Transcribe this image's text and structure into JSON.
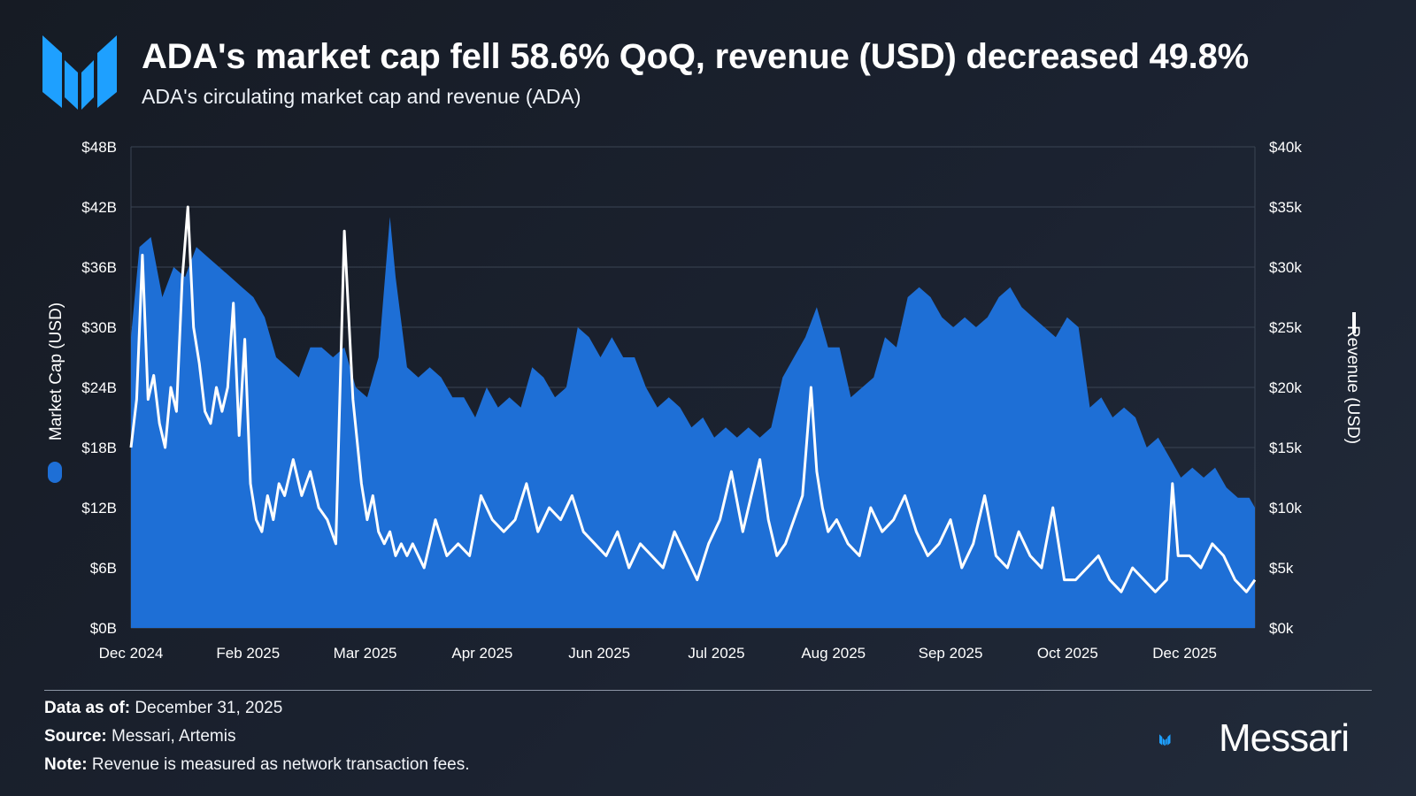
{
  "header": {
    "title": "ADA's market cap fell 58.6% QoQ, revenue (USD) decreased 49.8%",
    "subtitle": "ADA's circulating market cap and revenue (ADA)"
  },
  "footer": {
    "data_as_of_label": "Data as of:",
    "data_as_of_value": "December 31, 2025",
    "source_label": "Source:",
    "source_value": "Messari, Artemis",
    "note_label": "Note:",
    "note_value": "Revenue is measured as network transaction fees."
  },
  "brand": {
    "name": "Messari"
  },
  "colors": {
    "area": "#1e6fd6",
    "area_dark": "#1a5fbf",
    "line": "#ffffff",
    "grid": "#3a4453",
    "accent": "#1ea0ff"
  },
  "chart_data": {
    "type": "area",
    "x_tick_labels": [
      "Dec 2024",
      "Feb 2025",
      "Mar 2025",
      "Apr 2025",
      "Jun 2025",
      "Jul 2025",
      "Aug 2025",
      "Sep 2025",
      "Oct 2025",
      "Dec 2025"
    ],
    "x_range": [
      "2024-12-01",
      "2025-12-31"
    ],
    "left_axis": {
      "label": "Market Cap (USD)",
      "min": 0,
      "max": 48,
      "ticks": [
        0,
        6,
        12,
        18,
        24,
        30,
        36,
        42,
        48
      ],
      "tick_labels": [
        "$0B",
        "$6B",
        "$12B",
        "$18B",
        "$24B",
        "$30B",
        "$36B",
        "$42B",
        "$48B"
      ]
    },
    "right_axis": {
      "label": "Revenue (USD)",
      "min": 0,
      "max": 40,
      "ticks": [
        0,
        5,
        10,
        15,
        20,
        25,
        30,
        35,
        40
      ],
      "tick_labels": [
        "$0k",
        "$5k",
        "$10k",
        "$15k",
        "$20k",
        "$25k",
        "$30k",
        "$35k",
        "$40k"
      ]
    },
    "series": [
      {
        "name": "Market Cap (USD)",
        "kind": "area",
        "axis": "left",
        "unit": "billions USD",
        "x": [
          "2024-12-01",
          "2024-12-04",
          "2024-12-08",
          "2024-12-12",
          "2024-12-16",
          "2024-12-20",
          "2024-12-24",
          "2024-12-28",
          "2025-01-01",
          "2025-01-05",
          "2025-01-09",
          "2025-01-13",
          "2025-01-17",
          "2025-01-21",
          "2025-01-25",
          "2025-01-29",
          "2025-02-02",
          "2025-02-06",
          "2025-02-10",
          "2025-02-14",
          "2025-02-18",
          "2025-02-22",
          "2025-02-26",
          "2025-03-02",
          "2025-03-04",
          "2025-03-08",
          "2025-03-12",
          "2025-03-16",
          "2025-03-20",
          "2025-03-24",
          "2025-03-28",
          "2025-04-01",
          "2025-04-05",
          "2025-04-09",
          "2025-04-13",
          "2025-04-17",
          "2025-04-21",
          "2025-04-25",
          "2025-04-29",
          "2025-05-03",
          "2025-05-07",
          "2025-05-11",
          "2025-05-15",
          "2025-05-19",
          "2025-05-23",
          "2025-05-27",
          "2025-05-31",
          "2025-06-04",
          "2025-06-08",
          "2025-06-12",
          "2025-06-16",
          "2025-06-20",
          "2025-06-24",
          "2025-06-28",
          "2025-07-02",
          "2025-07-06",
          "2025-07-10",
          "2025-07-14",
          "2025-07-18",
          "2025-07-22",
          "2025-07-26",
          "2025-07-30",
          "2025-08-03",
          "2025-08-07",
          "2025-08-11",
          "2025-08-15",
          "2025-08-19",
          "2025-08-23",
          "2025-08-27",
          "2025-08-31",
          "2025-09-04",
          "2025-09-08",
          "2025-09-12",
          "2025-09-16",
          "2025-09-20",
          "2025-09-24",
          "2025-09-28",
          "2025-10-02",
          "2025-10-06",
          "2025-10-10",
          "2025-10-14",
          "2025-10-18",
          "2025-10-22",
          "2025-10-26",
          "2025-10-30",
          "2025-11-03",
          "2025-11-07",
          "2025-11-11",
          "2025-11-15",
          "2025-11-19",
          "2025-11-23",
          "2025-11-27",
          "2025-12-01",
          "2025-12-05",
          "2025-12-09",
          "2025-12-13",
          "2025-12-17",
          "2025-12-21",
          "2025-12-25",
          "2025-12-29",
          "2025-12-31"
        ],
        "values": [
          29,
          38,
          39,
          33,
          36,
          35,
          38,
          37,
          36,
          35,
          34,
          33,
          31,
          27,
          26,
          25,
          28,
          28,
          27,
          28,
          24,
          23,
          27,
          41,
          35,
          26,
          25,
          26,
          25,
          23,
          23,
          21,
          24,
          22,
          23,
          22,
          26,
          25,
          23,
          24,
          30,
          29,
          27,
          29,
          27,
          27,
          24,
          22,
          23,
          22,
          20,
          21,
          19,
          20,
          19,
          20,
          19,
          20,
          25,
          27,
          29,
          32,
          28,
          28,
          23,
          24,
          25,
          29,
          28,
          33,
          34,
          33,
          31,
          30,
          31,
          30,
          31,
          33,
          34,
          32,
          31,
          30,
          29,
          31,
          30,
          22,
          23,
          21,
          22,
          21,
          18,
          19,
          17,
          15,
          16,
          15,
          16,
          14,
          13,
          13,
          12
        ]
      },
      {
        "name": "Revenue (USD)",
        "kind": "line",
        "axis": "right",
        "unit": "thousands USD",
        "x": [
          "2024-12-01",
          "2024-12-03",
          "2024-12-05",
          "2024-12-07",
          "2024-12-09",
          "2024-12-11",
          "2024-12-13",
          "2024-12-15",
          "2024-12-17",
          "2024-12-19",
          "2024-12-21",
          "2024-12-23",
          "2024-12-25",
          "2024-12-27",
          "2024-12-29",
          "2024-12-31",
          "2025-01-02",
          "2025-01-04",
          "2025-01-06",
          "2025-01-08",
          "2025-01-10",
          "2025-01-12",
          "2025-01-14",
          "2025-01-16",
          "2025-01-18",
          "2025-01-20",
          "2025-01-22",
          "2025-01-24",
          "2025-01-27",
          "2025-01-30",
          "2025-02-02",
          "2025-02-05",
          "2025-02-08",
          "2025-02-11",
          "2025-02-14",
          "2025-02-17",
          "2025-02-20",
          "2025-02-22",
          "2025-02-24",
          "2025-02-26",
          "2025-02-28",
          "2025-03-02",
          "2025-03-04",
          "2025-03-06",
          "2025-03-08",
          "2025-03-10",
          "2025-03-14",
          "2025-03-18",
          "2025-03-22",
          "2025-03-26",
          "2025-03-30",
          "2025-04-03",
          "2025-04-07",
          "2025-04-11",
          "2025-04-15",
          "2025-04-19",
          "2025-04-23",
          "2025-04-27",
          "2025-05-01",
          "2025-05-05",
          "2025-05-09",
          "2025-05-13",
          "2025-05-17",
          "2025-05-21",
          "2025-05-25",
          "2025-05-29",
          "2025-06-02",
          "2025-06-06",
          "2025-06-10",
          "2025-06-14",
          "2025-06-18",
          "2025-06-22",
          "2025-06-26",
          "2025-06-30",
          "2025-07-04",
          "2025-07-07",
          "2025-07-10",
          "2025-07-13",
          "2025-07-16",
          "2025-07-19",
          "2025-07-22",
          "2025-07-25",
          "2025-07-28",
          "2025-07-30",
          "2025-08-01",
          "2025-08-03",
          "2025-08-06",
          "2025-08-10",
          "2025-08-14",
          "2025-08-18",
          "2025-08-22",
          "2025-08-26",
          "2025-08-30",
          "2025-09-03",
          "2025-09-07",
          "2025-09-11",
          "2025-09-15",
          "2025-09-19",
          "2025-09-23",
          "2025-09-27",
          "2025-10-01",
          "2025-10-05",
          "2025-10-09",
          "2025-10-13",
          "2025-10-17",
          "2025-10-21",
          "2025-10-25",
          "2025-10-29",
          "2025-11-02",
          "2025-11-06",
          "2025-11-10",
          "2025-11-14",
          "2025-11-18",
          "2025-11-22",
          "2025-11-26",
          "2025-11-30",
          "2025-12-02",
          "2025-12-04",
          "2025-12-08",
          "2025-12-12",
          "2025-12-16",
          "2025-12-20",
          "2025-12-24",
          "2025-12-28",
          "2025-12-31"
        ],
        "values": [
          15,
          19,
          31,
          19,
          21,
          17,
          15,
          20,
          18,
          29,
          35,
          25,
          22,
          18,
          17,
          20,
          18,
          20,
          27,
          16,
          24,
          12,
          9,
          8,
          11,
          9,
          12,
          11,
          14,
          11,
          13,
          10,
          9,
          7,
          33,
          19,
          12,
          9,
          11,
          8,
          7,
          8,
          6,
          7,
          6,
          7,
          5,
          9,
          6,
          7,
          6,
          11,
          9,
          8,
          9,
          12,
          8,
          10,
          9,
          11,
          8,
          7,
          6,
          8,
          5,
          7,
          6,
          5,
          8,
          6,
          4,
          7,
          9,
          13,
          8,
          11,
          14,
          9,
          6,
          7,
          9,
          11,
          20,
          13,
          10,
          8,
          9,
          7,
          6,
          10,
          8,
          9,
          11,
          8,
          6,
          7,
          9,
          5,
          7,
          11,
          6,
          5,
          8,
          6,
          5,
          10,
          4,
          4,
          5,
          6,
          4,
          3,
          5,
          4,
          3,
          4,
          12,
          6,
          6,
          5,
          7,
          6,
          4,
          3,
          4
        ]
      }
    ],
    "legend_placement": "axis titles (left and right)",
    "grid": true
  }
}
